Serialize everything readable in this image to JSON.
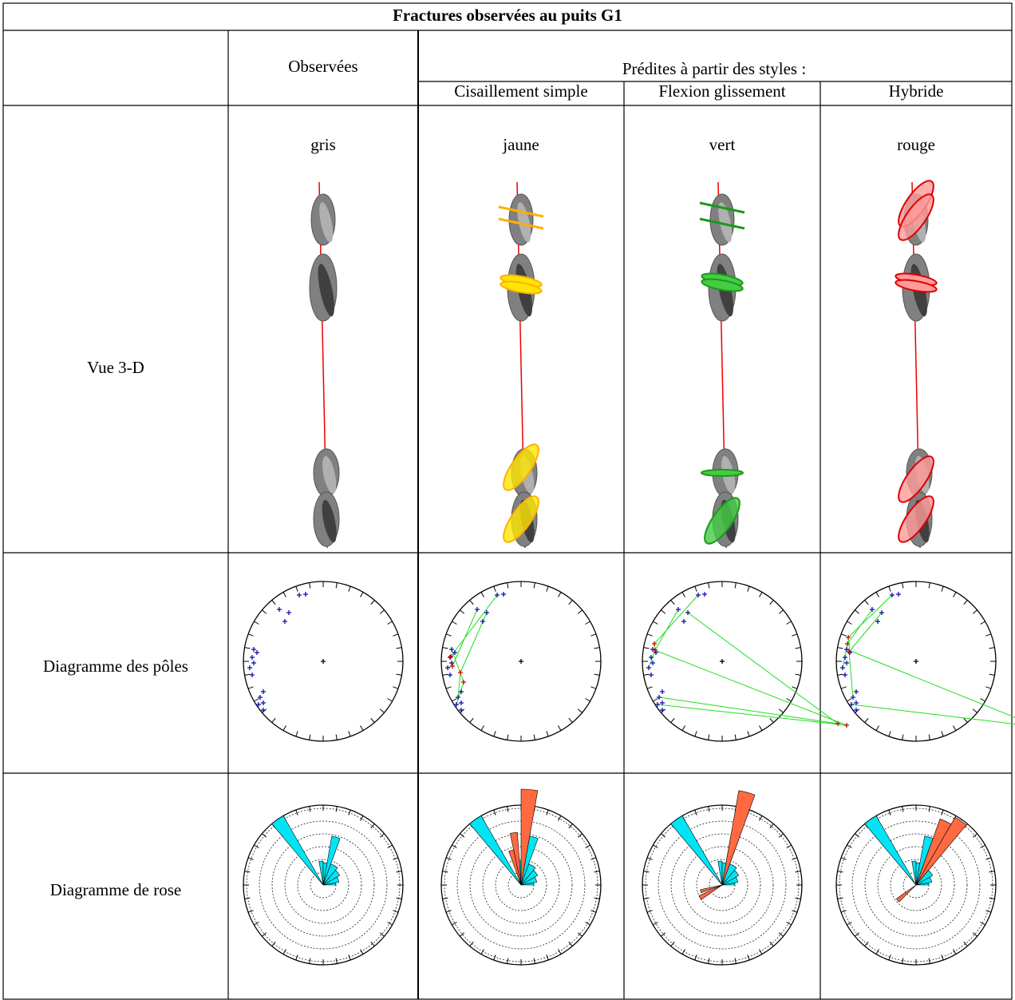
{
  "table": {
    "title": "Fractures observées au puits G1",
    "header": {
      "observed": "Observées",
      "predicted": "Prédites à partir des styles :",
      "styles": [
        "Cisaillement simple",
        "Flexion glissement",
        "Hybride"
      ]
    },
    "rows": [
      {
        "label": "Vue 3-D",
        "colors": [
          "gris",
          "jaune",
          "vert",
          "rouge"
        ]
      },
      {
        "label": "Diagramme des pôles"
      },
      {
        "label": "Diagramme de rose"
      }
    ]
  }
}
